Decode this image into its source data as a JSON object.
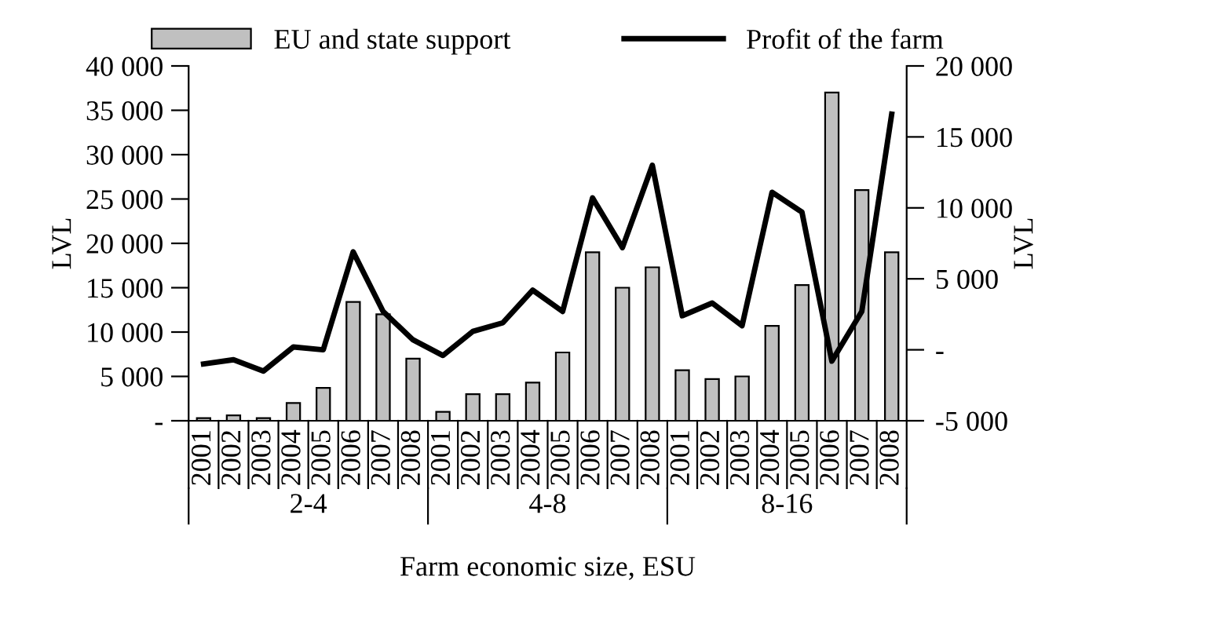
{
  "chart_data": {
    "type": "bar",
    "xlabel": "Farm economic size, ESU",
    "ylabel": "LVL",
    "y2label": "LVL",
    "categories": [
      "2001",
      "2002",
      "2003",
      "2004",
      "2005",
      "2006",
      "2007",
      "2008",
      "2001",
      "2002",
      "2003",
      "2004",
      "2005",
      "2006",
      "2007",
      "2008",
      "2001",
      "2002",
      "2003",
      "2004",
      "2005",
      "2006",
      "2007",
      "2008"
    ],
    "series": [
      {
        "name": "EU and state support",
        "color": "#c0c0c0",
        "values": [
          300,
          600,
          300,
          2000,
          3700,
          13400,
          12000,
          7000,
          1000,
          3000,
          3000,
          4300,
          7700,
          19000,
          15000,
          17300,
          5700,
          4700,
          5000,
          10700,
          15300,
          37000,
          26000,
          19000
        ]
      },
      {
        "name": "Profit of the farm",
        "color": "#000000",
        "type": "line",
        "axis": "y2",
        "values": [
          -1000,
          -700,
          -1500,
          200,
          0,
          6900,
          2700,
          700,
          -400,
          1300,
          1900,
          4200,
          2700,
          10700,
          7200,
          13000,
          2400,
          3300,
          1700,
          11100,
          9700,
          -800,
          2700,
          16600
        ]
      }
    ],
    "annotations": [
      "2-4",
      "4-8",
      "8-16"
    ],
    "ylim": [
      0,
      40000
    ],
    "yticks": [
      {
        "value": 0,
        "label": "-"
      },
      {
        "value": 5000,
        "label": "5 000"
      },
      {
        "value": 10000,
        "label": "10 000"
      },
      {
        "value": 15000,
        "label": "15 000"
      },
      {
        "value": 20000,
        "label": "20 000"
      },
      {
        "value": 25000,
        "label": "25 000"
      },
      {
        "value": 30000,
        "label": "30 000"
      },
      {
        "value": 35000,
        "label": "35 000"
      },
      {
        "value": 40000,
        "label": "40 000"
      }
    ],
    "y2lim": [
      -5000,
      20000
    ],
    "y2ticks": [
      {
        "value": -5000,
        "label": "-5 000"
      },
      {
        "value": 0,
        "label": "-"
      },
      {
        "value": 5000,
        "label": "5 000"
      },
      {
        "value": 10000,
        "label": "10 000"
      },
      {
        "value": 15000,
        "label": "15 000"
      },
      {
        "value": 20000,
        "label": "20 000"
      }
    ],
    "legend": "top",
    "grid": false
  }
}
